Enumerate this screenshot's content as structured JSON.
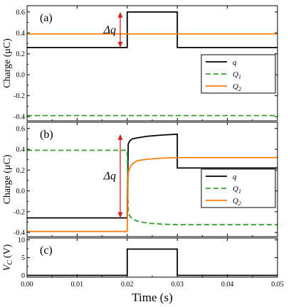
{
  "figure": {
    "xlabel": "Time (s)",
    "xticks": [
      "0.00",
      "0.01",
      "0.02",
      "0.03",
      "0.04",
      "0.05"
    ],
    "xlim": [
      0,
      0.05
    ]
  },
  "colors": {
    "q": "#000000",
    "Q1": "#33a02c",
    "Q2": "#ff7f0e",
    "arrow": "#d62020"
  },
  "chart_data": [
    {
      "type": "line",
      "panel_label": "(a)",
      "ylabel": "Charge (μC)",
      "ylim": [
        -0.44,
        0.66
      ],
      "yticks": [
        "-0.4",
        "-0.2",
        "0.0",
        "0.2",
        "0.4",
        "0.6"
      ],
      "ytick_values": [
        -0.4,
        -0.2,
        0.0,
        0.2,
        0.4,
        0.6
      ],
      "annotation": "Δq",
      "legend_position": "right",
      "series": [
        {
          "name": "q",
          "key": "q",
          "style": "solid",
          "points": [
            [
              0,
              0.26
            ],
            [
              0.02,
              0.26
            ],
            [
              0.02,
              0.6
            ],
            [
              0.03,
              0.6
            ],
            [
              0.03,
              0.26
            ],
            [
              0.05,
              0.26
            ]
          ]
        },
        {
          "name": "Q",
          "sub": "1",
          "key": "Q1",
          "style": "dashed",
          "points": [
            [
              0,
              -0.39
            ],
            [
              0.05,
              -0.39
            ]
          ]
        },
        {
          "name": "Q",
          "sub": "2",
          "key": "Q2",
          "style": "solid",
          "points": [
            [
              0,
              0.39
            ],
            [
              0.05,
              0.39
            ]
          ]
        }
      ]
    },
    {
      "type": "line",
      "panel_label": "(b)",
      "ylabel": "Charge (μC)",
      "ylim": [
        -0.44,
        0.66
      ],
      "yticks": [
        "-0.4",
        "-0.2",
        "0.0",
        "0.2",
        "0.4",
        "0.6"
      ],
      "ytick_values": [
        -0.4,
        -0.2,
        0.0,
        0.2,
        0.4,
        0.6
      ],
      "annotation": "Δq",
      "legend_position": "right",
      "series": [
        {
          "name": "q",
          "key": "q",
          "style": "solid",
          "points": [
            [
              0,
              -0.26
            ],
            [
              0.02,
              -0.26
            ],
            [
              0.0202,
              0.45
            ],
            [
              0.0205,
              0.48
            ],
            [
              0.021,
              0.5
            ],
            [
              0.022,
              0.51
            ],
            [
              0.024,
              0.525
            ],
            [
              0.027,
              0.537
            ],
            [
              0.03,
              0.545
            ],
            [
              0.03,
              0.22
            ],
            [
              0.05,
              0.22
            ]
          ]
        },
        {
          "name": "Q",
          "sub": "1",
          "key": "Q1",
          "style": "dashed",
          "points": [
            [
              0,
              0.39
            ],
            [
              0.02,
              0.39
            ],
            [
              0.0202,
              -0.2
            ],
            [
              0.0205,
              -0.24
            ],
            [
              0.021,
              -0.27
            ],
            [
              0.022,
              -0.29
            ],
            [
              0.024,
              -0.31
            ],
            [
              0.027,
              -0.32
            ],
            [
              0.03,
              -0.325
            ],
            [
              0.05,
              -0.325
            ]
          ]
        },
        {
          "name": "Q",
          "sub": "2",
          "key": "Q2",
          "style": "solid",
          "points": [
            [
              0,
              -0.39
            ],
            [
              0.02,
              -0.39
            ],
            [
              0.0202,
              0.17
            ],
            [
              0.0205,
              0.22
            ],
            [
              0.021,
              0.26
            ],
            [
              0.022,
              0.29
            ],
            [
              0.024,
              0.305
            ],
            [
              0.027,
              0.315
            ],
            [
              0.03,
              0.32
            ],
            [
              0.05,
              0.32
            ]
          ]
        }
      ]
    },
    {
      "type": "line",
      "panel_label": "(c)",
      "ylabel": "V",
      "ylabel_sub": "C",
      "ylabel_unit": "(V)",
      "ylim": [
        -0.5,
        10.5
      ],
      "yticks": [
        "0",
        "5",
        "10"
      ],
      "ytick_values": [
        0,
        5,
        10
      ],
      "series": [
        {
          "key": "q",
          "style": "solid",
          "points": [
            [
              0,
              0
            ],
            [
              0.02,
              0
            ],
            [
              0.02,
              7.4
            ],
            [
              0.03,
              7.4
            ],
            [
              0.03,
              0
            ],
            [
              0.05,
              0
            ]
          ]
        }
      ]
    }
  ]
}
